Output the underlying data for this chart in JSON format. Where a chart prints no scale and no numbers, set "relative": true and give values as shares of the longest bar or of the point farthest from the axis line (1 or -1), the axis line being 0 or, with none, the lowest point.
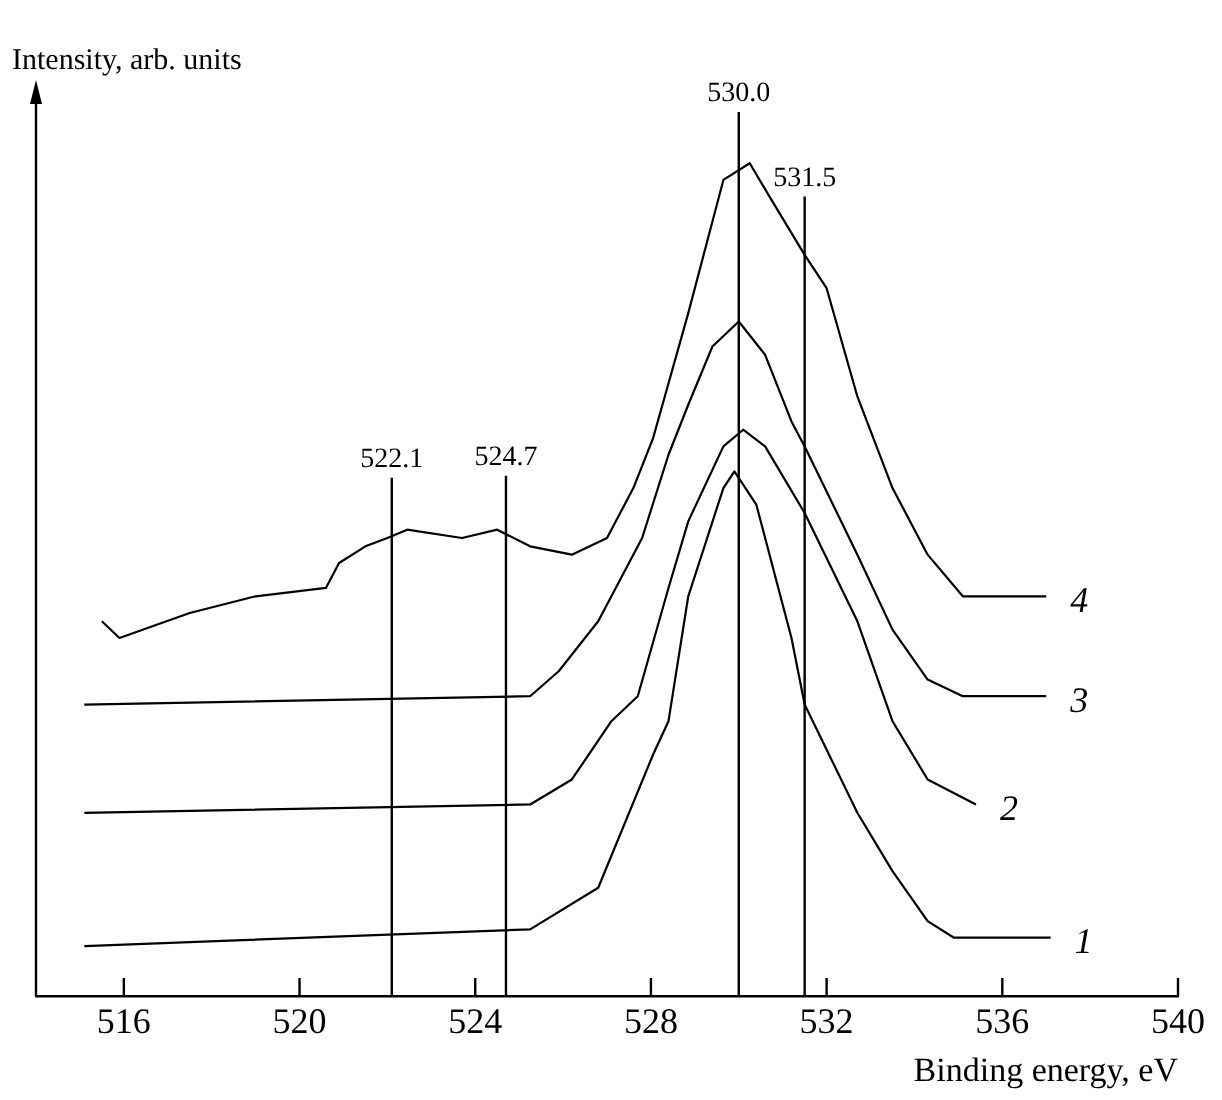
{
  "chart_data": {
    "type": "line",
    "relative": true,
    "xlabel": "Binding energy, eV",
    "ylabel": "Intensity, arb. units",
    "xlim": [
      514,
      540
    ],
    "xticks": [
      516,
      520,
      524,
      528,
      532,
      536,
      540
    ],
    "grid": false,
    "legend": false,
    "marker": "none",
    "line_style": "solid",
    "series": [
      {
        "name": "1",
        "color": "#000000",
        "x": [
          515.1,
          525.25,
          526.8,
          528.05,
          528.4,
          528.85,
          529.65,
          529.9,
          530.4,
          531.2,
          531.5,
          532.7,
          533.5,
          534.3,
          534.9,
          537.1
        ],
        "values": [
          0.06,
          0.08,
          0.13,
          0.29,
          0.33,
          0.48,
          0.61,
          0.63,
          0.59,
          0.43,
          0.35,
          0.22,
          0.15,
          0.09,
          0.07,
          0.07
        ]
      },
      {
        "name": "2",
        "color": "#000000",
        "x": [
          515.1,
          525.25,
          526.2,
          527.1,
          527.7,
          528.4,
          528.85,
          529.65,
          530.1,
          530.6,
          531.5,
          532.7,
          533.5,
          534.3,
          535.4
        ],
        "values": [
          0.22,
          0.23,
          0.26,
          0.33,
          0.36,
          0.49,
          0.57,
          0.66,
          0.68,
          0.66,
          0.58,
          0.45,
          0.33,
          0.26,
          0.23
        ]
      },
      {
        "name": "3",
        "color": "#000000",
        "x": [
          515.1,
          525.25,
          525.9,
          526.8,
          527.8,
          528.4,
          528.85,
          529.4,
          530.0,
          530.6,
          531.2,
          531.5,
          532.7,
          533.5,
          534.3,
          535.1,
          537.0
        ],
        "values": [
          0.35,
          0.36,
          0.39,
          0.45,
          0.55,
          0.65,
          0.71,
          0.78,
          0.81,
          0.77,
          0.69,
          0.66,
          0.53,
          0.44,
          0.38,
          0.36,
          0.36
        ]
      },
      {
        "name": "4",
        "color": "#000000",
        "x": [
          515.5,
          515.9,
          517.5,
          519.0,
          520.6,
          520.9,
          521.5,
          522.0,
          522.45,
          523.7,
          524.5,
          525.25,
          526.2,
          527.0,
          527.6,
          528.05,
          528.85,
          529.65,
          530.25,
          530.7,
          531.5,
          532.0,
          532.7,
          533.5,
          534.3,
          535.1,
          535.9,
          537.0
        ],
        "values": [
          0.45,
          0.43,
          0.46,
          0.48,
          0.49,
          0.52,
          0.54,
          0.55,
          0.56,
          0.55,
          0.56,
          0.54,
          0.53,
          0.55,
          0.61,
          0.67,
          0.82,
          0.98,
          1,
          0.96,
          0.89,
          0.85,
          0.72,
          0.61,
          0.53,
          0.48,
          0.48,
          0.48
        ]
      }
    ],
    "ref_lines": [
      {
        "axis": "x",
        "value": 522.1,
        "label": "522.1"
      },
      {
        "axis": "x",
        "value": 524.7,
        "label": "524.7"
      },
      {
        "axis": "x",
        "value": 530,
        "label": "530.0"
      },
      {
        "axis": "x",
        "value": 531.5,
        "label": "531.5"
      }
    ]
  }
}
